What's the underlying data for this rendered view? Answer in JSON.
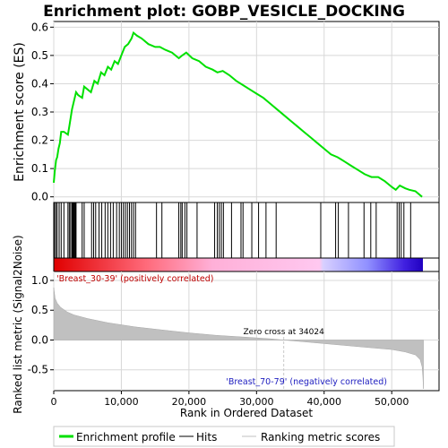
{
  "chart_data": {
    "type": "line",
    "title": "Enrichment plot: GOBP_VESICLE_DOCKING",
    "top_panel": {
      "ylabel": "Enrichment score (ES)",
      "ylim": [
        -0.02,
        0.62
      ],
      "yticks": [
        "0.0",
        "0.1",
        "0.2",
        "0.3",
        "0.4",
        "0.5",
        "0.6"
      ],
      "ytick_values": [
        0.0,
        0.1,
        0.2,
        0.3,
        0.4,
        0.5,
        0.6
      ],
      "series": [
        {
          "name": "Enrichment profile",
          "color": "#00e000",
          "x": [
            0,
            150,
            350,
            500,
            700,
            900,
            1100,
            1500,
            2100,
            2300,
            2500,
            2700,
            2900,
            3100,
            3300,
            3600,
            4200,
            4500,
            5000,
            5500,
            6000,
            6500,
            7000,
            7500,
            8000,
            8500,
            9000,
            9500,
            10000,
            10500,
            11000,
            11500,
            11800,
            12300,
            13000,
            14000,
            15000,
            15700,
            16500,
            17500,
            18500,
            19000,
            19600,
            20500,
            21500,
            22500,
            23500,
            24200,
            25000,
            26000,
            27000,
            28000,
            29000,
            30000,
            31000,
            32000,
            33000,
            34000,
            35000,
            36000,
            37000,
            38000,
            39000,
            40000,
            41000,
            42000,
            43000,
            44000,
            45000,
            46000,
            47000,
            48000,
            49000,
            50000,
            50600,
            51200,
            52000,
            52600,
            53500,
            54500
          ],
          "y": [
            0.05,
            0.09,
            0.13,
            0.14,
            0.17,
            0.19,
            0.23,
            0.23,
            0.22,
            0.25,
            0.28,
            0.31,
            0.33,
            0.35,
            0.37,
            0.36,
            0.35,
            0.39,
            0.38,
            0.37,
            0.41,
            0.4,
            0.44,
            0.43,
            0.46,
            0.45,
            0.48,
            0.47,
            0.5,
            0.53,
            0.54,
            0.56,
            0.58,
            0.57,
            0.56,
            0.54,
            0.53,
            0.53,
            0.52,
            0.51,
            0.49,
            0.5,
            0.51,
            0.49,
            0.48,
            0.46,
            0.45,
            0.44,
            0.445,
            0.43,
            0.41,
            0.395,
            0.38,
            0.365,
            0.35,
            0.33,
            0.31,
            0.29,
            0.27,
            0.25,
            0.23,
            0.21,
            0.19,
            0.17,
            0.15,
            0.14,
            0.125,
            0.11,
            0.095,
            0.08,
            0.07,
            0.07,
            0.055,
            0.035,
            0.025,
            0.04,
            0.03,
            0.025,
            0.02,
            0.0
          ]
        }
      ]
    },
    "hits_panel": {
      "hits": [
        100,
        300,
        500,
        800,
        1100,
        1500,
        2100,
        2300,
        2500,
        2700,
        2800,
        2900,
        3000,
        3100,
        3200,
        3300,
        4200,
        4500,
        5600,
        5900,
        6200,
        6700,
        7100,
        7600,
        8000,
        8400,
        8800,
        9300,
        9700,
        10000,
        10300,
        10600,
        10900,
        11200,
        11500,
        11800,
        12100,
        15200,
        16000,
        18500,
        18800,
        19000,
        19400,
        19700,
        21200,
        23800,
        24200,
        24500,
        24800,
        25100,
        26300,
        27700,
        28000,
        29300,
        30300,
        31400,
        32900,
        39500,
        41700,
        42100,
        43600,
        45900,
        46900,
        47700,
        50800,
        51100,
        51400,
        51800,
        52800
      ]
    },
    "bottom_panel": {
      "ylabel": "Ranked list metric (Signal2Noise)",
      "xlabel": "Rank in Ordered Dataset",
      "ylim": [
        -0.85,
        1.15
      ],
      "yticks": [
        "-0.5",
        "0.0",
        "0.5",
        "1.0"
      ],
      "ytick_values": [
        -0.5,
        0.0,
        0.5,
        1.0
      ],
      "xlim": [
        0,
        57000
      ],
      "xticks": [
        "0",
        "10,000",
        "20,000",
        "30,000",
        "40,000",
        "50,000"
      ],
      "xtick_values": [
        0,
        10000,
        20000,
        30000,
        40000,
        50000
      ],
      "metric_x": [
        0,
        200,
        500,
        1000,
        2000,
        3000,
        5000,
        8000,
        12000,
        16000,
        20000,
        24000,
        28000,
        32000,
        34024,
        38000,
        42000,
        46000,
        50000,
        52000,
        53500,
        54200,
        54500,
        54600,
        54700
      ],
      "metric_y": [
        0.88,
        0.7,
        0.62,
        0.55,
        0.47,
        0.42,
        0.36,
        0.29,
        0.22,
        0.17,
        0.12,
        0.08,
        0.05,
        0.02,
        0.0,
        -0.04,
        -0.08,
        -0.12,
        -0.16,
        -0.2,
        -0.25,
        -0.33,
        -0.45,
        -0.6,
        -0.82
      ],
      "zero_cross_label": "Zero cross at 34024",
      "zero_cross": 34024,
      "pos_label": "'Breast_30-39' (positively correlated)",
      "neg_label": "'Breast_70-79' (negatively correlated)"
    },
    "legend": {
      "placement": "bottom",
      "entries": [
        "Enrichment profile",
        "Hits",
        "Ranking metric scores"
      ],
      "colors": [
        "#00e000",
        "#000000",
        "#c0c0c0"
      ]
    }
  }
}
